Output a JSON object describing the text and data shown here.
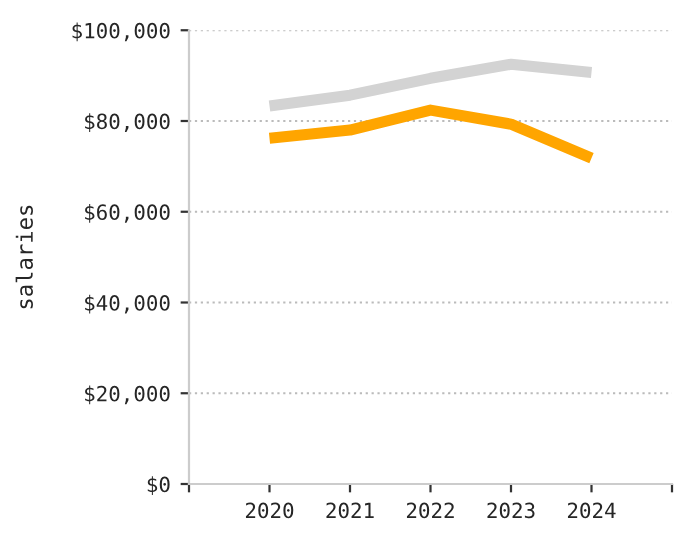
{
  "chart_data": {
    "type": "line",
    "ylabel": "salaries",
    "x": [
      2020,
      2021,
      2022,
      2023,
      2024
    ],
    "series": [
      {
        "color": "#d3d3d3",
        "values": [
          83300,
          85700,
          89400,
          92500,
          90700
        ]
      },
      {
        "color": "#ffa500",
        "values": [
          76200,
          78000,
          82400,
          79300,
          71800
        ]
      }
    ],
    "xlim": [
      2019,
      2025
    ],
    "xticks": [
      {
        "value": 2019,
        "label": null
      },
      2020,
      2021,
      2022,
      2023,
      2024,
      {
        "value": 2025,
        "label": null
      }
    ],
    "ylim": [
      0,
      100000
    ],
    "yticks": [
      {
        "value": 0,
        "label": "$0"
      },
      {
        "value": 20000,
        "label": "$20,000"
      },
      {
        "value": 40000,
        "label": "$40,000"
      },
      {
        "value": 60000,
        "label": "$60,000"
      },
      {
        "value": 80000,
        "label": "$80,000"
      },
      {
        "value": 100000,
        "label": "$100,000"
      }
    ],
    "grid": "y",
    "legend": false,
    "marker": "none",
    "line_style": "solid"
  }
}
